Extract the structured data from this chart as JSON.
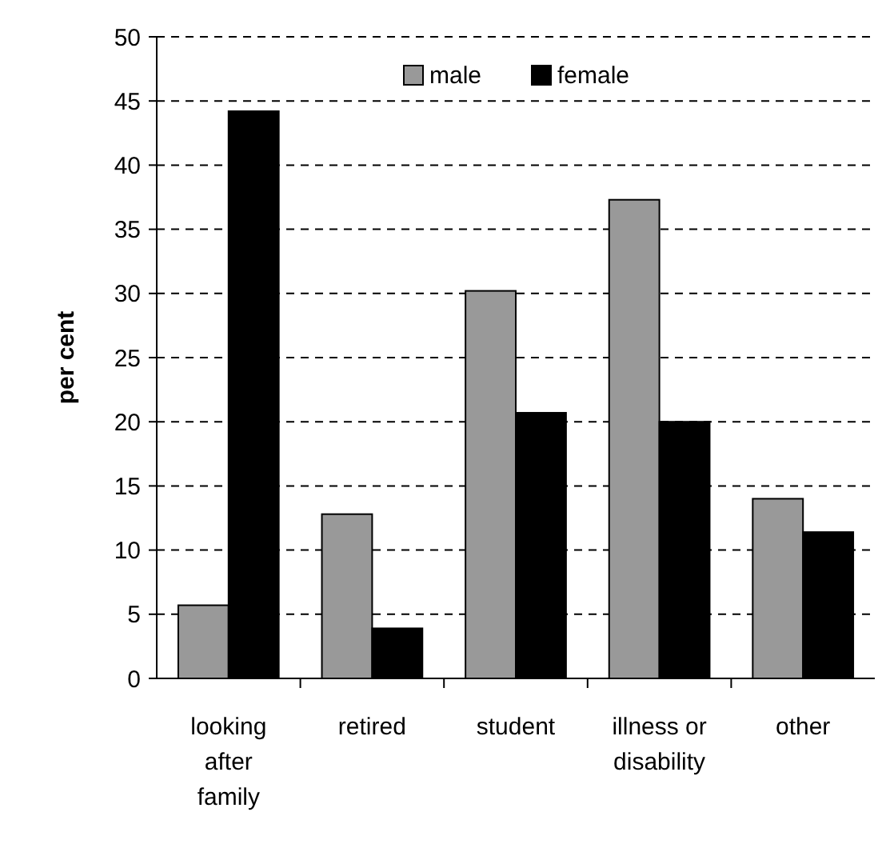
{
  "chart_data": {
    "type": "bar",
    "ylabel": "per cent",
    "categories": [
      "looking after family",
      "retired",
      "student",
      "illness or disability",
      "other"
    ],
    "series": [
      {
        "name": "male",
        "color": "#999999",
        "values": [
          5.7,
          12.8,
          30.2,
          37.3,
          14.0
        ]
      },
      {
        "name": "female",
        "color": "#000000",
        "values": [
          44.2,
          3.9,
          20.7,
          20.0,
          11.4
        ]
      }
    ],
    "ylim": [
      0,
      50
    ],
    "yticks": [
      0,
      5,
      10,
      15,
      20,
      25,
      30,
      35,
      40,
      45,
      50
    ],
    "grid": "y",
    "legend": "top"
  }
}
